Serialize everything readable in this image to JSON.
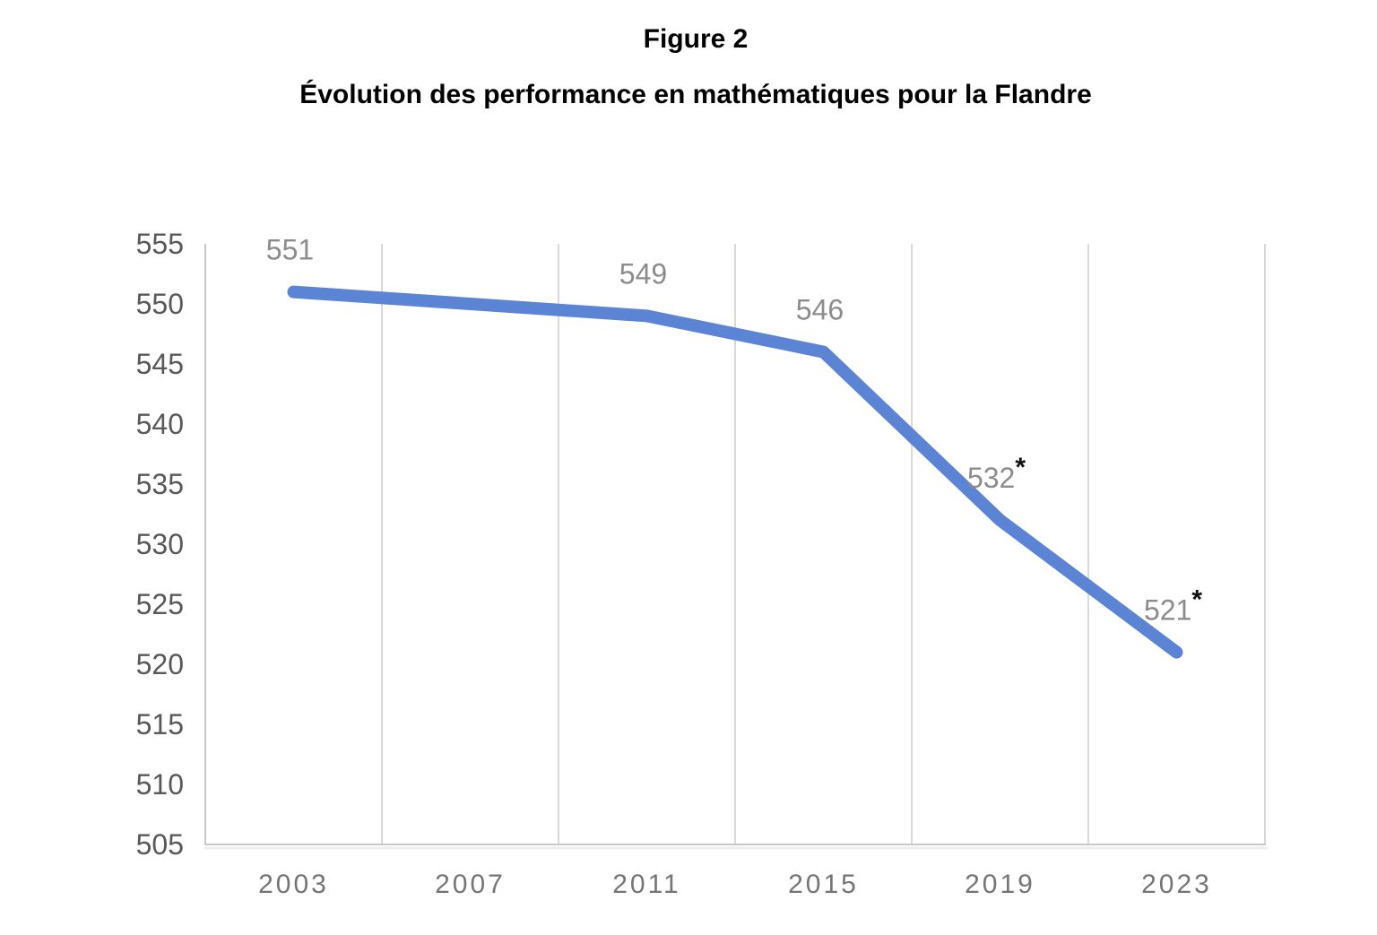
{
  "page": {
    "figure_label": "Figure 2",
    "title": "Évolution des performance en mathématiques pour la Flandre"
  },
  "chart_data": {
    "type": "line",
    "title": "Évolution des performance en mathématiques pour la Flandre",
    "categories": [
      "2003",
      "2007",
      "2011",
      "2015",
      "2019",
      "2023"
    ],
    "series": [
      {
        "name": "Flandre",
        "values": [
          551,
          550,
          549,
          546,
          532,
          521
        ]
      }
    ],
    "data_labels": [
      {
        "text": "551",
        "starred": false,
        "shown": true
      },
      {
        "text": "",
        "starred": false,
        "shown": false
      },
      {
        "text": "549",
        "starred": false,
        "shown": true
      },
      {
        "text": "546",
        "starred": false,
        "shown": true
      },
      {
        "text": "532",
        "starred": true,
        "shown": true
      },
      {
        "text": "521",
        "starred": true,
        "shown": true
      }
    ],
    "xlabel": "",
    "ylabel": "",
    "ylim": [
      505,
      555
    ],
    "ytick_step": 5,
    "grid": "vertical-only",
    "legend": "none",
    "colors": {
      "line": "#5b84d4",
      "gridline": "#d9d9d9",
      "axis_line": "#c8c8c8",
      "axis_shadow": "#ededed",
      "y_tick_label": "#595959",
      "x_tick_label": "#757575",
      "data_label": "#8c8c8c",
      "asterisk": "#111111",
      "title": "#000000",
      "background": "#ffffff"
    }
  }
}
